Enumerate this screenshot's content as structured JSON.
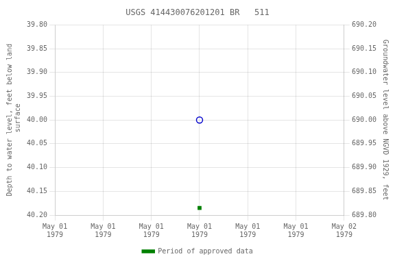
{
  "chart_data": {
    "type": "scatter",
    "title": "USGS 414430076201201 BR   511",
    "y_label": "Depth to water level, feet below land\n surface",
    "y2_label": "Groundwater level above NGVD 1929, feet",
    "x": [
      12
    ],
    "xlim": [
      0,
      24
    ],
    "xticks": [
      {
        "value": 0,
        "label": "May 01\n1979"
      },
      {
        "value": 4,
        "label": "May 01\n1979"
      },
      {
        "value": 8,
        "label": "May 01\n1979"
      },
      {
        "value": 12,
        "label": "May 01\n1979"
      },
      {
        "value": 16,
        "label": "May 01\n1979"
      },
      {
        "value": 20,
        "label": "May 01\n1979"
      },
      {
        "value": 24,
        "label": "May 02\n1979"
      }
    ],
    "ylim": [
      40.2,
      39.8
    ],
    "yticks": [
      {
        "value": 39.8,
        "label": "39.80"
      },
      {
        "value": 39.85,
        "label": "39.85"
      },
      {
        "value": 39.9,
        "label": "39.90"
      },
      {
        "value": 39.95,
        "label": "39.95"
      },
      {
        "value": 40.0,
        "label": "40.00"
      },
      {
        "value": 40.05,
        "label": "40.05"
      },
      {
        "value": 40.1,
        "label": "40.10"
      },
      {
        "value": 40.15,
        "label": "40.15"
      },
      {
        "value": 40.2,
        "label": "40.20"
      }
    ],
    "y2lim": [
      689.8,
      690.2
    ],
    "y2ticks": [
      {
        "value": 689.8,
        "label": "689.80"
      },
      {
        "value": 689.85,
        "label": "689.85"
      },
      {
        "value": 689.9,
        "label": "689.90"
      },
      {
        "value": 689.95,
        "label": "689.95"
      },
      {
        "value": 690.0,
        "label": "690.00"
      },
      {
        "value": 690.05,
        "label": "690.05"
      },
      {
        "value": 690.1,
        "label": "690.10"
      },
      {
        "value": 690.15,
        "label": "690.15"
      },
      {
        "value": 690.2,
        "label": "690.20"
      }
    ],
    "series": [
      {
        "color": "#0000cc",
        "marker": "circle-open",
        "values": [
          40.0
        ]
      },
      {
        "name": "Period of approved data",
        "color": "#008000",
        "marker": "square",
        "values": [
          40.185
        ]
      }
    ],
    "grid": true,
    "legend": "bottom"
  }
}
